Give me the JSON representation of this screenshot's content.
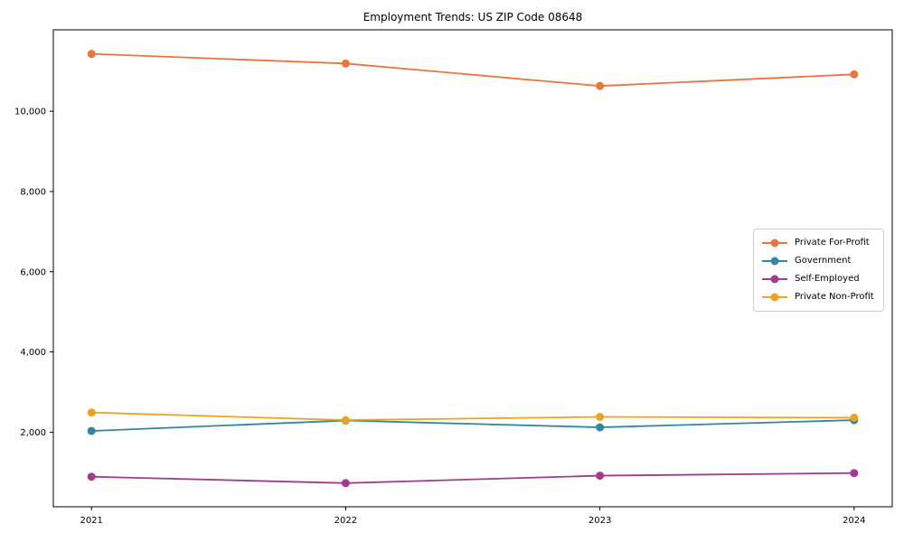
{
  "chart_data": {
    "type": "line",
    "title": "Employment Trends: US ZIP Code 08648",
    "x": [
      2021,
      2022,
      2023,
      2024
    ],
    "categories": [
      "2021",
      "2022",
      "2023",
      "2024"
    ],
    "series": [
      {
        "name": "Private For-Profit",
        "color": "#e8763d",
        "values": [
          11430,
          11190,
          10630,
          10920
        ]
      },
      {
        "name": "Government",
        "color": "#3187a2",
        "values": [
          2030,
          2290,
          2120,
          2300
        ]
      },
      {
        "name": "Self-Employed",
        "color": "#a23b8c",
        "values": [
          890,
          730,
          915,
          980
        ]
      },
      {
        "name": "Private Non-Profit",
        "color": "#eda321",
        "values": [
          2490,
          2300,
          2380,
          2360
        ]
      }
    ],
    "xlabel": "",
    "ylabel": "",
    "xlim": [
      2020.85,
      2024.15
    ],
    "ylim": [
      140,
      12030
    ],
    "yticks": [
      2000,
      4000,
      6000,
      8000,
      10000
    ],
    "ytick_labels": [
      "2,000",
      "4,000",
      "6,000",
      "8,000",
      "10,000"
    ],
    "grid": false,
    "marker": "circle",
    "legend_position": "right-center",
    "axis_color": "#000000",
    "background_color": "#ffffff",
    "legend_border_color": "#cccccc"
  }
}
